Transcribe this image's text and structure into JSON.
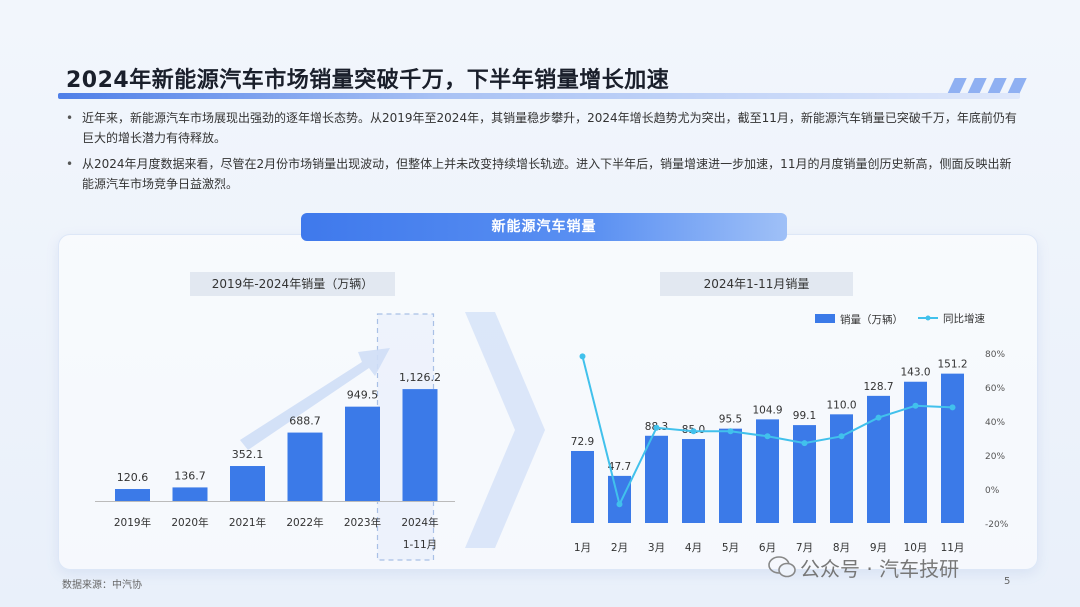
{
  "title": "2024年新能源汽车市场销量突破千万，下半年销量增长加速",
  "bullets": [
    "近年来，新能源汽车市场展现出强劲的逐年增长态势。从2019年至2024年，其销量稳步攀升，2024年增长趋势尤为突出，截至11月，新能源汽车销量已突破千万，年底前仍有巨大的增长潜力有待释放。",
    "从2024年月度数据来看，尽管在2月份市场销量出现波动，但整体上并未改变持续增长轨迹。进入下半年后，销量增速进一步加速，11月的月度销量创历史新高，侧面反映出新能源汽车市场竞争日益激烈。"
  ],
  "panel_title": "新能源汽车销量",
  "source": "数据来源：中汽协",
  "page_number": "5",
  "watermark": "公众号 · 汽车技研",
  "colors": {
    "bar": "#3b7ae8",
    "line": "#41c1ec",
    "accent": "#4f7fe8"
  },
  "chart_data": [
    {
      "type": "bar",
      "title": "2019年-2024年销量（万辆）",
      "categories": [
        "2019年",
        "2020年",
        "2021年",
        "2022年",
        "2023年",
        "2024年\n1-11月"
      ],
      "values": [
        120.6,
        136.7,
        352.1,
        688.7,
        949.5,
        1126.2
      ],
      "value_labels": [
        "120.6",
        "136.7",
        "352.1",
        "688.7",
        "949.5",
        "1,126.2"
      ],
      "ylim": [
        0,
        1250
      ],
      "grid": false
    },
    {
      "type": "bar+line",
      "title": "2024年1-11月销量",
      "categories": [
        "1月",
        "2月",
        "3月",
        "4月",
        "5月",
        "6月",
        "7月",
        "8月",
        "9月",
        "10月",
        "11月"
      ],
      "series": [
        {
          "name": "销量（万辆）",
          "type": "bar",
          "axis": "left",
          "values": [
            72.9,
            47.7,
            88.3,
            85.0,
            95.5,
            104.9,
            99.1,
            110.0,
            128.7,
            143.0,
            151.2
          ]
        },
        {
          "name": "同比增速",
          "type": "line",
          "axis": "right",
          "values": [
            78,
            -9,
            36,
            34,
            34,
            31,
            27,
            31,
            42,
            49,
            48
          ]
        }
      ],
      "value_labels": [
        "72.9",
        "47.7",
        "88.3",
        "85.0",
        "95.5",
        "104.9",
        "99.1",
        "110.0",
        "128.7",
        "143.0",
        "151.2"
      ],
      "y_left_lim": [
        0,
        165
      ],
      "y_right_lim": [
        -20,
        80
      ],
      "y_right_ticks": [
        "80%",
        "60%",
        "40%",
        "20%",
        "0%",
        "-20%"
      ],
      "legend_position": "top-right",
      "grid": false
    }
  ]
}
